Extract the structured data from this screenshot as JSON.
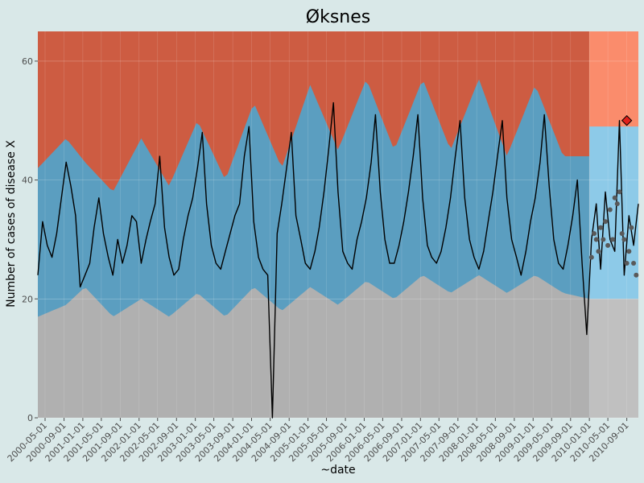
{
  "chart_data": {
    "type": "area",
    "title": "Øksnes",
    "xlabel": "~date",
    "ylabel": "Number of cases of disease X",
    "ylim": [
      0,
      65
    ],
    "yticks": [
      0,
      20,
      40,
      60
    ],
    "xlim": [
      "2000-03-15",
      "2010-11-15"
    ],
    "x_tick_labels": [
      "2000-05-01",
      "2000-09-01",
      "2001-01-01",
      "2001-05-01",
      "2001-09-01",
      "2002-01-01",
      "2002-05-01",
      "2002-09-01",
      "2003-01-01",
      "2003-05-01",
      "2003-09-01",
      "2004-01-01",
      "2004-05-01",
      "2004-09-01",
      "2005-01-01",
      "2005-05-01",
      "2005-09-01",
      "2006-01-01",
      "2006-05-01",
      "2006-09-01",
      "2007-01-01",
      "2007-05-01",
      "2007-09-01",
      "2008-01-01",
      "2008-05-01",
      "2008-09-01",
      "2009-01-01",
      "2009-05-01",
      "2009-09-01",
      "2010-01-01",
      "2010-05-01",
      "2010-09-01"
    ],
    "forecast_start": "2010-01-01",
    "colors": {
      "high_band_baseline": "#cd5c42",
      "normal_band_baseline": "#5b9ec0",
      "low_band_baseline": "#b0b0b0",
      "high_band_forecast": "#fa8c6c",
      "normal_band_forecast": "#8dcae8",
      "low_band_forecast": "#c0c0c0",
      "cases_line": "#000000",
      "forecast_points": "#595959",
      "alert_marker": "#e0201b",
      "grid": "#ffffff"
    },
    "series": [
      {
        "name": "",
        "role": "observed_cases",
        "points": [
          [
            "2000-03-15",
            24
          ],
          [
            "2000-04-15",
            33
          ],
          [
            "2000-05-15",
            29
          ],
          [
            "2000-06-15",
            27
          ],
          [
            "2000-07-15",
            31
          ],
          [
            "2000-08-15",
            37
          ],
          [
            "2000-09-15",
            43
          ],
          [
            "2000-10-15",
            39
          ],
          [
            "2000-11-15",
            34
          ],
          [
            "2000-12-15",
            22
          ],
          [
            "2001-01-15",
            24
          ],
          [
            "2001-02-15",
            26
          ],
          [
            "2001-03-15",
            32
          ],
          [
            "2001-04-15",
            37
          ],
          [
            "2001-05-15",
            31
          ],
          [
            "2001-06-15",
            27
          ],
          [
            "2001-07-15",
            24
          ],
          [
            "2001-08-15",
            30
          ],
          [
            "2001-09-15",
            26
          ],
          [
            "2001-10-15",
            29
          ],
          [
            "2001-11-15",
            34
          ],
          [
            "2001-12-15",
            33
          ],
          [
            "2002-01-15",
            26
          ],
          [
            "2002-02-15",
            30
          ],
          [
            "2002-03-15",
            33
          ],
          [
            "2002-04-15",
            36
          ],
          [
            "2002-05-15",
            44
          ],
          [
            "2002-06-15",
            32
          ],
          [
            "2002-07-15",
            27
          ],
          [
            "2002-08-15",
            24
          ],
          [
            "2002-09-15",
            25
          ],
          [
            "2002-10-15",
            30
          ],
          [
            "2002-11-15",
            34
          ],
          [
            "2002-12-15",
            37
          ],
          [
            "2003-01-15",
            42
          ],
          [
            "2003-02-15",
            48
          ],
          [
            "2003-03-15",
            36
          ],
          [
            "2003-04-15",
            29
          ],
          [
            "2003-05-15",
            26
          ],
          [
            "2003-06-15",
            25
          ],
          [
            "2003-07-15",
            28
          ],
          [
            "2003-08-15",
            31
          ],
          [
            "2003-09-15",
            34
          ],
          [
            "2003-10-15",
            36
          ],
          [
            "2003-11-15",
            44
          ],
          [
            "2003-12-15",
            49
          ],
          [
            "2004-01-15",
            33
          ],
          [
            "2004-02-15",
            27
          ],
          [
            "2004-03-15",
            25
          ],
          [
            "2004-04-15",
            24
          ],
          [
            "2004-05-15",
            0
          ],
          [
            "2004-06-15",
            31
          ],
          [
            "2004-07-15",
            36
          ],
          [
            "2004-08-15",
            42
          ],
          [
            "2004-09-15",
            48
          ],
          [
            "2004-10-15",
            34
          ],
          [
            "2004-11-15",
            30
          ],
          [
            "2004-12-15",
            26
          ],
          [
            "2005-01-15",
            25
          ],
          [
            "2005-02-15",
            28
          ],
          [
            "2005-03-15",
            32
          ],
          [
            "2005-04-15",
            38
          ],
          [
            "2005-05-15",
            45
          ],
          [
            "2005-06-15",
            53
          ],
          [
            "2005-07-15",
            38
          ],
          [
            "2005-08-15",
            28
          ],
          [
            "2005-09-15",
            26
          ],
          [
            "2005-10-15",
            25
          ],
          [
            "2005-11-15",
            30
          ],
          [
            "2005-12-15",
            33
          ],
          [
            "2006-01-15",
            37
          ],
          [
            "2006-02-15",
            43
          ],
          [
            "2006-03-15",
            51
          ],
          [
            "2006-04-15",
            38
          ],
          [
            "2006-05-15",
            30
          ],
          [
            "2006-06-15",
            26
          ],
          [
            "2006-07-15",
            26
          ],
          [
            "2006-08-15",
            29
          ],
          [
            "2006-09-15",
            33
          ],
          [
            "2006-10-15",
            38
          ],
          [
            "2006-11-15",
            44
          ],
          [
            "2006-12-15",
            51
          ],
          [
            "2007-01-15",
            37
          ],
          [
            "2007-02-15",
            29
          ],
          [
            "2007-03-15",
            27
          ],
          [
            "2007-04-15",
            26
          ],
          [
            "2007-05-15",
            28
          ],
          [
            "2007-06-15",
            32
          ],
          [
            "2007-07-15",
            37
          ],
          [
            "2007-08-15",
            44
          ],
          [
            "2007-09-15",
            50
          ],
          [
            "2007-10-15",
            37
          ],
          [
            "2007-11-15",
            30
          ],
          [
            "2007-12-15",
            27
          ],
          [
            "2008-01-15",
            25
          ],
          [
            "2008-02-15",
            28
          ],
          [
            "2008-03-15",
            33
          ],
          [
            "2008-04-15",
            38
          ],
          [
            "2008-05-15",
            44
          ],
          [
            "2008-06-15",
            50
          ],
          [
            "2008-07-15",
            37
          ],
          [
            "2008-08-15",
            30
          ],
          [
            "2008-09-15",
            27
          ],
          [
            "2008-10-15",
            24
          ],
          [
            "2008-11-15",
            28
          ],
          [
            "2008-12-15",
            33
          ],
          [
            "2009-01-15",
            37
          ],
          [
            "2009-02-15",
            43
          ],
          [
            "2009-03-15",
            51
          ],
          [
            "2009-04-15",
            39
          ],
          [
            "2009-05-15",
            30
          ],
          [
            "2009-06-15",
            26
          ],
          [
            "2009-07-15",
            25
          ],
          [
            "2009-08-15",
            29
          ],
          [
            "2009-09-15",
            34
          ],
          [
            "2009-10-15",
            40
          ],
          [
            "2009-11-15",
            26
          ],
          [
            "2009-12-15",
            14
          ],
          [
            "2010-01-15",
            30
          ],
          [
            "2010-02-15",
            36
          ],
          [
            "2010-03-15",
            25
          ],
          [
            "2010-04-15",
            38
          ],
          [
            "2010-05-15",
            30
          ],
          [
            "2010-06-15",
            28
          ],
          [
            "2010-07-15",
            50
          ],
          [
            "2010-08-15",
            24
          ],
          [
            "2010-09-15",
            34
          ],
          [
            "2010-10-15",
            29
          ],
          [
            "2010-11-15",
            36
          ]
        ]
      },
      {
        "name": "",
        "role": "forecast_points",
        "points": [
          [
            "2010-01-15",
            27
          ],
          [
            "2010-02-01",
            31
          ],
          [
            "2010-02-15",
            30
          ],
          [
            "2010-03-01",
            28
          ],
          [
            "2010-03-15",
            32
          ],
          [
            "2010-04-01",
            30
          ],
          [
            "2010-04-15",
            33
          ],
          [
            "2010-05-01",
            29
          ],
          [
            "2010-05-15",
            35
          ],
          [
            "2010-06-01",
            30
          ],
          [
            "2010-06-15",
            37
          ],
          [
            "2010-07-01",
            36
          ],
          [
            "2010-07-15",
            38
          ],
          [
            "2010-08-01",
            31
          ],
          [
            "2010-08-15",
            30
          ],
          [
            "2010-09-01",
            26
          ],
          [
            "2010-09-15",
            28
          ],
          [
            "2010-10-01",
            32
          ],
          [
            "2010-10-15",
            26
          ],
          [
            "2010-11-01",
            24
          ]
        ]
      }
    ],
    "bands": {
      "low_upper_baseline": [
        [
          "2000-03-15",
          17
        ],
        [
          "2000-09-15",
          19
        ],
        [
          "2001-01-15",
          22
        ],
        [
          "2001-07-15",
          17
        ],
        [
          "2002-01-15",
          20
        ],
        [
          "2002-07-15",
          17
        ],
        [
          "2003-01-15",
          21
        ],
        [
          "2003-07-15",
          17
        ],
        [
          "2004-01-15",
          22
        ],
        [
          "2004-07-15",
          18
        ],
        [
          "2005-01-15",
          22
        ],
        [
          "2005-07-15",
          19
        ],
        [
          "2006-01-15",
          23
        ],
        [
          "2006-07-15",
          20
        ],
        [
          "2007-01-15",
          24
        ],
        [
          "2007-07-15",
          21
        ],
        [
          "2008-01-15",
          24
        ],
        [
          "2008-07-15",
          21
        ],
        [
          "2009-01-15",
          24
        ],
        [
          "2009-07-15",
          21
        ],
        [
          "2010-01-01",
          20
        ]
      ],
      "normal_upper_baseline": [
        [
          "2000-03-15",
          42
        ],
        [
          "2000-09-15",
          47
        ],
        [
          "2001-01-15",
          43
        ],
        [
          "2001-07-15",
          38
        ],
        [
          "2002-01-15",
          47
        ],
        [
          "2002-07-15",
          39
        ],
        [
          "2003-01-15",
          50
        ],
        [
          "2003-07-15",
          40
        ],
        [
          "2004-01-15",
          53
        ],
        [
          "2004-07-15",
          42
        ],
        [
          "2005-01-15",
          56
        ],
        [
          "2005-07-15",
          45
        ],
        [
          "2006-01-15",
          57
        ],
        [
          "2006-07-15",
          45
        ],
        [
          "2007-01-15",
          57
        ],
        [
          "2007-07-15",
          45
        ],
        [
          "2008-01-15",
          57
        ],
        [
          "2008-07-15",
          44
        ],
        [
          "2009-01-15",
          56
        ],
        [
          "2009-07-15",
          44
        ],
        [
          "2010-01-01",
          44
        ]
      ],
      "low_upper_forecast": 20,
      "normal_upper_forecast": 49,
      "high_upper_forecast": 65
    },
    "alert": {
      "x": "2010-09-01",
      "y": 50
    }
  }
}
